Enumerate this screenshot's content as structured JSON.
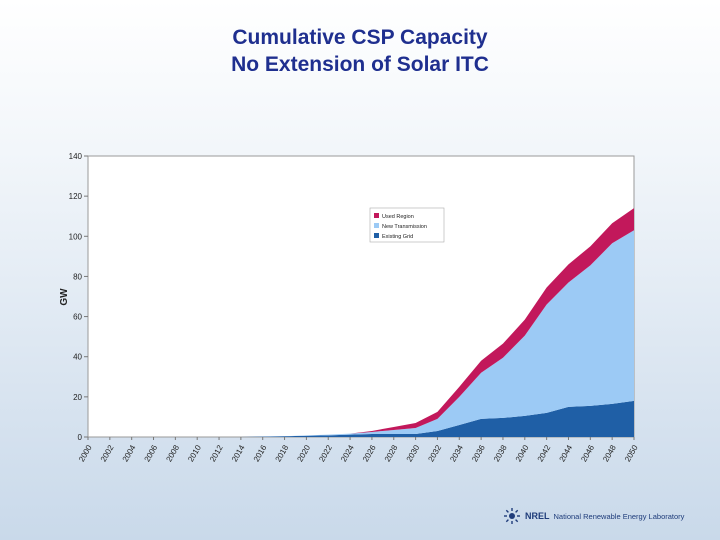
{
  "title": {
    "line1": "Cumulative CSP Capacity",
    "line2": "No Extension of Solar ITC"
  },
  "logo": {
    "acronym": "NREL",
    "org": "National Renewable Energy Laboratory",
    "icon": "nrel-sun-icon"
  },
  "colors": {
    "title": "#1f2f8f",
    "used_region": "#c2185b",
    "new_transmission": "#9ccaf5",
    "existing_grid": "#1f5fa6"
  },
  "chart_data": {
    "type": "area",
    "stacked": true,
    "title": "",
    "xlabel": "",
    "ylabel": "GW",
    "ylim": [
      0,
      140
    ],
    "yticks": [
      0,
      20,
      40,
      60,
      80,
      100,
      120,
      140
    ],
    "grid": false,
    "legend_position": "upper-center",
    "x": [
      "2000",
      "2002",
      "2004",
      "2006",
      "2008",
      "2010",
      "2012",
      "2014",
      "2016",
      "2018",
      "2020",
      "2022",
      "2024",
      "2026",
      "2028",
      "2030",
      "2032",
      "2034",
      "2036",
      "2038",
      "2040",
      "2042",
      "2044",
      "2046",
      "2048",
      "2050"
    ],
    "series": [
      {
        "name": "Existing Grid",
        "values": [
          0,
          0,
          0,
          0,
          0,
          0,
          0,
          0,
          0.2,
          0.4,
          0.6,
          0.8,
          1.2,
          1.5,
          1.5,
          1.5,
          3,
          6,
          9,
          9.5,
          10.5,
          12,
          15,
          15.5,
          16.5,
          18
        ]
      },
      {
        "name": "New Transmission",
        "values": [
          0,
          0,
          0,
          0,
          0,
          0,
          0,
          0,
          0,
          0,
          0.2,
          0.4,
          0.5,
          1,
          2,
          3,
          6,
          14,
          23,
          30,
          40,
          54,
          62,
          70,
          80,
          85
        ]
      },
      {
        "name": "Used Region",
        "values": [
          0,
          0,
          0,
          0,
          0,
          0,
          0,
          0,
          0,
          0,
          0,
          0,
          0,
          0.5,
          1.5,
          2.5,
          3.5,
          5,
          6,
          7,
          8,
          8.5,
          9,
          9.5,
          10,
          11
        ]
      }
    ]
  }
}
